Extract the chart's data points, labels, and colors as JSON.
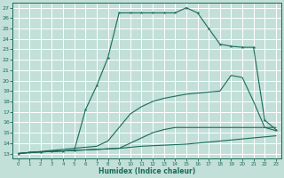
{
  "xlabel": "Humidex (Indice chaleur)",
  "xlim": [
    -0.5,
    23.5
  ],
  "ylim": [
    12.5,
    27.5
  ],
  "xticks": [
    0,
    1,
    2,
    3,
    4,
    5,
    6,
    7,
    8,
    9,
    10,
    11,
    12,
    13,
    14,
    15,
    16,
    17,
    18,
    19,
    20,
    21,
    22,
    23
  ],
  "yticks": [
    13,
    14,
    15,
    16,
    17,
    18,
    19,
    20,
    21,
    22,
    23,
    24,
    25,
    26,
    27
  ],
  "background_color": "#c2dfd8",
  "grid_color": "#ffffff",
  "line_color": "#1a6b5a",
  "line1_x": [
    0,
    1,
    2,
    3,
    4,
    5,
    6,
    7,
    8,
    9,
    10,
    11,
    12,
    13,
    14,
    15,
    16,
    17,
    18,
    19,
    20,
    21,
    22,
    23
  ],
  "line1_y": [
    13,
    13.1,
    13.15,
    13.2,
    13.25,
    13.3,
    13.35,
    13.4,
    13.45,
    13.5,
    13.6,
    13.7,
    13.75,
    13.8,
    13.85,
    13.9,
    14.0,
    14.1,
    14.2,
    14.3,
    14.4,
    14.5,
    14.6,
    14.7
  ],
  "line2_x": [
    0,
    1,
    2,
    3,
    4,
    5,
    6,
    7,
    8,
    9,
    10,
    11,
    12,
    13,
    14,
    15,
    16,
    17,
    18,
    19,
    20,
    21,
    22,
    23
  ],
  "line2_y": [
    13,
    13.1,
    13.2,
    13.3,
    13.4,
    13.5,
    13.6,
    13.7,
    14.2,
    15.5,
    16.8,
    17.5,
    18.0,
    18.3,
    18.5,
    18.7,
    18.8,
    18.9,
    19.0,
    20.5,
    20.3,
    18.0,
    15.5,
    15.2
  ],
  "line3_x": [
    0,
    1,
    2,
    3,
    4,
    5,
    6,
    7,
    8,
    9,
    10,
    11,
    12,
    13,
    14,
    15,
    16,
    17,
    18,
    19,
    20,
    21,
    22,
    23
  ],
  "line3_y": [
    13,
    13.1,
    13.15,
    13.2,
    13.25,
    13.3,
    17.2,
    19.5,
    22.2,
    26.5,
    26.5,
    26.5,
    26.5,
    26.5,
    26.5,
    27.0,
    26.5,
    25.0,
    23.5,
    23.3,
    23.2,
    23.2,
    16.2,
    15.3
  ],
  "line4_x": [
    0,
    1,
    2,
    3,
    4,
    5,
    6,
    7,
    8,
    9,
    10,
    11,
    12,
    13,
    14,
    15,
    16,
    17,
    18,
    19,
    20,
    21,
    22,
    23
  ],
  "line4_y": [
    13,
    13.1,
    13.15,
    13.2,
    13.25,
    13.3,
    13.35,
    13.4,
    13.45,
    13.5,
    14.0,
    14.5,
    15.0,
    15.3,
    15.5,
    15.5,
    15.5,
    15.5,
    15.5,
    15.5,
    15.5,
    15.5,
    15.5,
    15.5
  ]
}
